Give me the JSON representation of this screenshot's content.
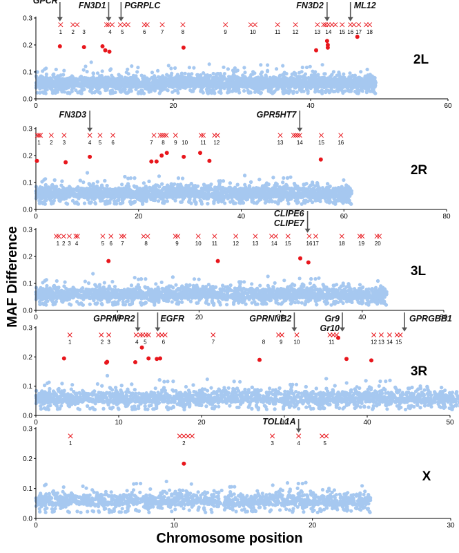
{
  "figure": {
    "ylabel": "MAF Difference",
    "xlabel": "Chromosome position"
  },
  "colors": {
    "background_points": "#a6c8f0",
    "outliers": "#e8161c",
    "markers": "#e8161c",
    "axis": "#000000",
    "arrow": "#555555"
  },
  "chart_data": [
    {
      "type": "scatter",
      "panel": "2L",
      "xlim": [
        0,
        60
      ],
      "ylim": [
        0,
        0.3
      ],
      "xticks": [
        0,
        20,
        40,
        60
      ],
      "yticks": [
        0,
        0.1,
        0.2,
        0.3
      ],
      "background_extent": 49.5,
      "outliers": [
        [
          3.5,
          0.195
        ],
        [
          7,
          0.192
        ],
        [
          9.7,
          0.195
        ],
        [
          10.1,
          0.18
        ],
        [
          10.7,
          0.175
        ],
        [
          21.5,
          0.19
        ],
        [
          40.8,
          0.18
        ],
        [
          42.4,
          0.215
        ],
        [
          42.5,
          0.2
        ],
        [
          42.5,
          0.19
        ],
        [
          46.8,
          0.23
        ]
      ],
      "markers": [
        {
          "label": "1",
          "x": 3.6
        },
        {
          "label": "2",
          "x": 5.4
        },
        {
          "label": "3",
          "x": 7.0
        },
        {
          "label": "4",
          "x": 10.8
        },
        {
          "label": "5",
          "x": 12.6
        },
        {
          "label": "6",
          "x": 15.8
        },
        {
          "label": "7",
          "x": 18.4
        },
        {
          "label": "8",
          "x": 21.4
        },
        {
          "label": "9",
          "x": 27.6
        },
        {
          "label": "10",
          "x": 31.6
        },
        {
          "label": "11",
          "x": 35.2
        },
        {
          "label": "12",
          "x": 37.8
        },
        {
          "label": "13",
          "x": 41.0
        },
        {
          "label": "14",
          "x": 42.6
        },
        {
          "label": "15",
          "x": 44.6
        },
        {
          "label": "16",
          "x": 45.8
        },
        {
          "label": "17",
          "x": 47.0
        },
        {
          "label": "18",
          "x": 48.6
        }
      ],
      "marker_x_extra": [
        3.6,
        5.4,
        6.0,
        10.3,
        10.6,
        11.1,
        12.3,
        12.9,
        13.4,
        15.8,
        16.2,
        18.4,
        21.4,
        27.6,
        31.3,
        31.9,
        35.2,
        37.8,
        41.0,
        41.9,
        42.2,
        42.6,
        43.1,
        43.6,
        44.6,
        45.8,
        46.3,
        47.0,
        48.1,
        48.6
      ],
      "genes": [
        {
          "name": "GPCR",
          "x": 3.5
        },
        {
          "name": "FN3D1",
          "x": 10.6
        },
        {
          "name": "PGRPLC",
          "x": 12.4
        },
        {
          "name": "FN3D2",
          "x": 42.4
        },
        {
          "name": "ML12",
          "x": 45.8
        }
      ],
      "arrows_x": [
        3.5,
        10.6,
        12.4,
        42.4,
        45.8
      ]
    },
    {
      "type": "scatter",
      "panel": "2R",
      "xlim": [
        0,
        80
      ],
      "ylim": [
        0,
        0.3
      ],
      "xticks": [
        0,
        20,
        40,
        60,
        80
      ],
      "yticks": [
        0,
        0.1,
        0.2,
        0.3
      ],
      "background_extent": 61.5,
      "outliers": [
        [
          0.2,
          0.18
        ],
        [
          5.8,
          0.175
        ],
        [
          10.5,
          0.195
        ],
        [
          22.5,
          0.178
        ],
        [
          23.5,
          0.178
        ],
        [
          24.5,
          0.2
        ],
        [
          25.5,
          0.21
        ],
        [
          28.8,
          0.195
        ],
        [
          32,
          0.21
        ],
        [
          33.8,
          0.18
        ],
        [
          55.5,
          0.185
        ]
      ],
      "markers": [
        {
          "label": "1",
          "x": 0.6
        },
        {
          "label": "2",
          "x": 3.0
        },
        {
          "label": "3",
          "x": 5.5
        },
        {
          "label": "4",
          "x": 10.5
        },
        {
          "label": "5",
          "x": 12.5
        },
        {
          "label": "6",
          "x": 15.0
        },
        {
          "label": "7",
          "x": 22.5
        },
        {
          "label": "8",
          "x": 24.8
        },
        {
          "label": "9",
          "x": 27.2
        },
        {
          "label": "10",
          "x": 29.0
        },
        {
          "label": "11",
          "x": 32.6
        },
        {
          "label": "12",
          "x": 35.2
        },
        {
          "label": "13",
          "x": 47.6
        },
        {
          "label": "14",
          "x": 51.4
        },
        {
          "label": "15",
          "x": 55.6
        },
        {
          "label": "16",
          "x": 59.4
        }
      ],
      "marker_x_extra": [
        0.3,
        0.6,
        0.9,
        3.0,
        5.5,
        10.5,
        12.5,
        15.0,
        23.0,
        24.2,
        24.6,
        25.0,
        25.4,
        27.2,
        32.2,
        32.6,
        34.8,
        35.4,
        47.6,
        50.2,
        50.6,
        51.0,
        51.4,
        55.6,
        59.4
      ],
      "genes": [
        {
          "name": "FN3D3",
          "x": 10.5
        },
        {
          "name": "GPR5HT7",
          "x": 51.4
        }
      ],
      "arrows_x": [
        10.5,
        51.4
      ]
    },
    {
      "type": "scatter",
      "panel": "3L",
      "xlim": [
        0,
        50
      ],
      "ylim": [
        0,
        0.3
      ],
      "xticks": [
        0,
        10,
        20,
        30,
        40,
        50
      ],
      "yticks": [
        0,
        0.1,
        0.2,
        0.3
      ],
      "background_extent": 43,
      "outliers": [
        [
          8.9,
          0.183
        ],
        [
          22.3,
          0.183
        ],
        [
          32.4,
          0.193
        ],
        [
          33.4,
          0.178
        ]
      ],
      "markers": [
        {
          "label": "1",
          "x": 2.7
        },
        {
          "label": "2",
          "x": 3.4
        },
        {
          "label": "3",
          "x": 4.1
        },
        {
          "label": "4",
          "x": 5.0
        },
        {
          "label": "5",
          "x": 8.2
        },
        {
          "label": "6",
          "x": 9.2
        },
        {
          "label": "7",
          "x": 10.6
        },
        {
          "label": "8",
          "x": 13.5
        },
        {
          "label": "9",
          "x": 17.3
        },
        {
          "label": "10",
          "x": 19.9
        },
        {
          "label": "11",
          "x": 21.9
        },
        {
          "label": "12",
          "x": 24.5
        },
        {
          "label": "13",
          "x": 26.9
        },
        {
          "label": "14",
          "x": 29.2
        },
        {
          "label": "15",
          "x": 30.9
        },
        {
          "label": "16",
          "x": 33.5
        },
        {
          "label": "17",
          "x": 34.3
        },
        {
          "label": "18",
          "x": 37.5
        },
        {
          "label": "19",
          "x": 39.9
        },
        {
          "label": "20",
          "x": 41.9
        }
      ],
      "marker_x_extra": [
        2.5,
        2.8,
        3.4,
        4.1,
        4.9,
        5.1,
        8.2,
        9.2,
        10.5,
        10.8,
        13.2,
        13.7,
        17.1,
        17.4,
        19.9,
        21.9,
        24.5,
        26.9,
        28.9,
        29.4,
        30.9,
        33.5,
        34.3,
        37.5,
        39.7,
        40.0,
        41.8,
        42.1
      ],
      "genes": [
        {
          "name": "CLIPE6",
          "x": 33.3
        },
        {
          "name": "CLIPE7",
          "x": 33.3
        }
      ],
      "arrows_x": [
        33.3
      ]
    },
    {
      "type": "scatter",
      "panel": "3R",
      "xlim": [
        0,
        50
      ],
      "ylim": [
        0,
        0.3
      ],
      "xticks": [
        0,
        10,
        20,
        30,
        40,
        50
      ],
      "yticks": [
        0,
        0.1,
        0.2,
        0.3
      ],
      "background_extent": 53,
      "outliers": [
        [
          3.4,
          0.195
        ],
        [
          8.5,
          0.18
        ],
        [
          8.6,
          0.183
        ],
        [
          12.0,
          0.182
        ],
        [
          12.8,
          0.232
        ],
        [
          13.6,
          0.195
        ],
        [
          14.6,
          0.193
        ],
        [
          15.0,
          0.195
        ],
        [
          27.0,
          0.19
        ],
        [
          36.5,
          0.265
        ],
        [
          37.5,
          0.193
        ],
        [
          40.5,
          0.188
        ]
      ],
      "markers": [
        {
          "label": "1",
          "x": 4.1
        },
        {
          "label": "2",
          "x": 8.0
        },
        {
          "label": "3",
          "x": 8.8
        },
        {
          "label": "4",
          "x": 12.2
        },
        {
          "label": "5",
          "x": 13.2
        },
        {
          "label": "6",
          "x": 15.4
        },
        {
          "label": "7",
          "x": 21.4
        },
        {
          "label": "8",
          "x": 27.5
        },
        {
          "label": "9",
          "x": 29.6
        },
        {
          "label": "10",
          "x": 31.5
        },
        {
          "label": "11",
          "x": 35.7
        },
        {
          "label": "12",
          "x": 40.8
        },
        {
          "label": "13",
          "x": 41.7
        },
        {
          "label": "14",
          "x": 42.7
        },
        {
          "label": "15",
          "x": 43.8
        }
      ],
      "marker_x_extra": [
        4.1,
        7.9,
        8.8,
        12.1,
        12.6,
        12.9,
        13.3,
        13.6,
        14.8,
        15.2,
        15.6,
        21.4,
        29.3,
        29.7,
        31.5,
        35.5,
        35.9,
        36.3,
        40.8,
        41.7,
        42.7,
        43.6,
        44.0
      ],
      "genes": [
        {
          "name": "GPRNPR2",
          "x": 12.3
        },
        {
          "name": "EGFR",
          "x": 14.7
        },
        {
          "name": "GPRNNB2",
          "x": 31.2
        },
        {
          "name": "Gr9",
          "x": 37.0
        },
        {
          "name": "Gr10",
          "x": 37.0
        },
        {
          "name": "GPRGBB1",
          "x": 44.5
        }
      ],
      "arrows_x": [
        12.3,
        14.7,
        31.2,
        37.0,
        44.5
      ]
    },
    {
      "type": "scatter",
      "panel": "X",
      "xlim": [
        0,
        30
      ],
      "ylim": [
        0,
        0.3
      ],
      "xticks": [
        0,
        10,
        20,
        30
      ],
      "yticks": [
        0,
        0.1,
        0.2,
        0.3
      ],
      "background_extent": 24.2,
      "outliers": [
        [
          10.7,
          0.183
        ]
      ],
      "markers": [
        {
          "label": "1",
          "x": 2.5
        },
        {
          "label": "2",
          "x": 10.7
        },
        {
          "label": "3",
          "x": 17.1
        },
        {
          "label": "4",
          "x": 19.0
        },
        {
          "label": "5",
          "x": 20.9
        }
      ],
      "marker_x_extra": [
        2.5,
        10.4,
        10.7,
        11.0,
        11.3,
        17.1,
        19.0,
        20.7,
        21.0
      ],
      "genes": [
        {
          "name": "TOLL1A",
          "x": 19.0
        }
      ],
      "arrows_x": [
        19.0
      ]
    }
  ]
}
